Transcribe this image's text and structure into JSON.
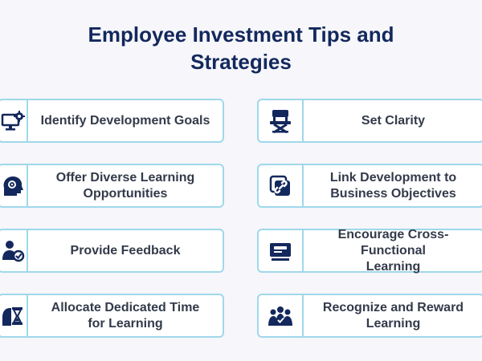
{
  "title": "Employee Investment Tips and Strategies",
  "colors": {
    "title": "#13285c",
    "icon": "#13285c",
    "border": "#9fd8ea",
    "text": "#333a4a",
    "background": "#f6f6fb"
  },
  "left_items": [
    {
      "label": "Identify Development Goals",
      "icon": "computer-gear-icon"
    },
    {
      "label": "Offer Diverse Learning\nOpportunities",
      "icon": "head-gear-icon"
    },
    {
      "label": "Provide Feedback",
      "icon": "person-check-icon"
    },
    {
      "label": "Allocate Dedicated Time\nfor Learning",
      "icon": "hourglass-person-icon"
    }
  ],
  "right_items": [
    {
      "label": "Set Clarity",
      "icon": "director-chair-icon"
    },
    {
      "label": "Link Development to\nBusiness Objectives",
      "icon": "chain-link-icon"
    },
    {
      "label": "Encourage Cross-Functional\nLearning",
      "icon": "id-card-icon"
    },
    {
      "label": "Recognize and Reward\nLearning",
      "icon": "team-icon"
    }
  ]
}
